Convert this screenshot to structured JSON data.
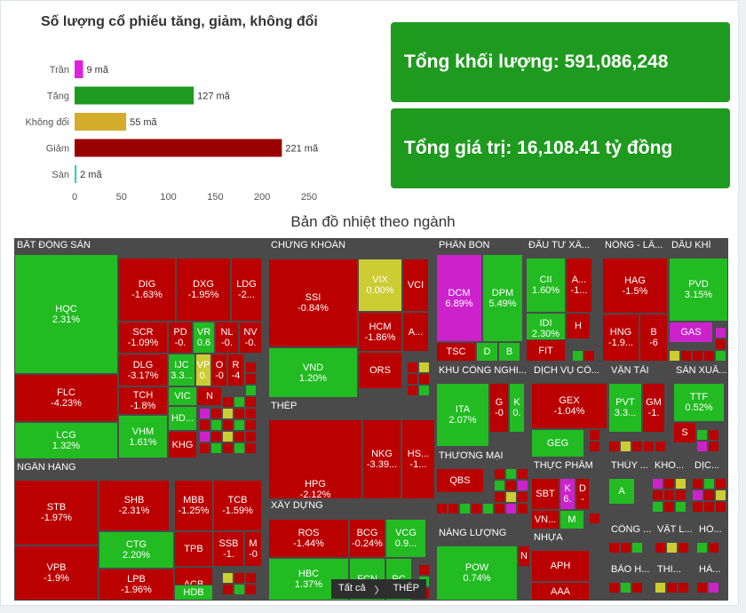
{
  "bar_panel": {
    "title": "Số lượng cổ phiếu tăng, giảm, không đổi"
  },
  "stats": {
    "volume": "Tổng khối lượng: 591,086,248",
    "value": "Tổng giá trị: 16,108.41 tỷ đồng"
  },
  "heatmap_title": "Bản đồ nhiệt theo ngành",
  "breadcrumb": {
    "root": "Tất cả",
    "sep": "〉",
    "current": "THÉP"
  },
  "colors": {
    "up": "#22bb22",
    "down": "#bb0000",
    "ref": "#cccc33",
    "ceil": "#cc22cc",
    "floor": "#33cccc",
    "panel": "#1e9a1e"
  },
  "chart_data": {
    "type": "bar",
    "orientation": "horizontal",
    "title": "Số lượng cổ phiếu tăng, giảm, không đổi",
    "categories": [
      "Trần",
      "Tăng",
      "Không đổi",
      "Giảm",
      "Sàn"
    ],
    "values": [
      9,
      127,
      55,
      221,
      2
    ],
    "value_labels": [
      "9 mã",
      "127 mã",
      "55 mã",
      "221 mã",
      "2 mã"
    ],
    "colors": [
      "#e020e0",
      "#1e9a1e",
      "#d4ac2b",
      "#990000",
      "#33cccc"
    ],
    "xlim": [
      0,
      250
    ],
    "xticks": [
      0,
      50,
      100,
      150,
      200,
      250
    ]
  },
  "heatmap": {
    "sectors": [
      {
        "name": "BẤT ĐỘNG SẢN",
        "cells": [
          {
            "t": "HQC",
            "v": "2.31%",
            "c": "up"
          },
          {
            "t": "FLC",
            "v": "-4.23%",
            "c": "down"
          },
          {
            "t": "LCG",
            "v": "1.32%",
            "c": "up"
          },
          {
            "t": "DIG",
            "v": "-1.63%",
            "c": "down"
          },
          {
            "t": "DXG",
            "v": "-1.95%",
            "c": "down"
          },
          {
            "t": "LDG",
            "v": "-2...",
            "c": "down"
          },
          {
            "t": "SCR",
            "v": "-1.09%",
            "c": "down"
          },
          {
            "t": "PD",
            "v": "-0.",
            "c": "down"
          },
          {
            "t": "VR",
            "v": "0.6",
            "c": "up"
          },
          {
            "t": "NL",
            "v": "-0.",
            "c": "down"
          },
          {
            "t": "NV",
            "v": "-0.",
            "c": "down"
          },
          {
            "t": "DLG",
            "v": "-3.17%",
            "c": "down"
          },
          {
            "t": "IJC",
            "v": "3.3...",
            "c": "up"
          },
          {
            "t": "VP",
            "v": "0.",
            "c": "ref"
          },
          {
            "t": "O",
            "v": "-0",
            "c": "down"
          },
          {
            "t": "R",
            "v": "-4",
            "c": "down"
          },
          {
            "t": "TCH",
            "v": "-1.8%",
            "c": "down"
          },
          {
            "t": "VIC",
            "v": "",
            "c": "up"
          },
          {
            "t": "N",
            "v": "",
            "c": "down"
          },
          {
            "t": "VHM",
            "v": "1.61%",
            "c": "up"
          },
          {
            "t": "HD...",
            "v": "",
            "c": "up"
          },
          {
            "t": "KHG",
            "v": "",
            "c": "down"
          }
        ]
      },
      {
        "name": "CHỨNG KHOÁN",
        "cells": [
          {
            "t": "SSI",
            "v": "-0.84%",
            "c": "down"
          },
          {
            "t": "VIX",
            "v": "0.00%",
            "c": "ref"
          },
          {
            "t": "VCI",
            "v": "",
            "c": "down"
          },
          {
            "t": "HCM",
            "v": "-1.86%",
            "c": "down"
          },
          {
            "t": "A...",
            "v": "",
            "c": "down"
          },
          {
            "t": "ORS",
            "v": "",
            "c": "down"
          },
          {
            "t": "VND",
            "v": "1.20%",
            "c": "up"
          }
        ]
      },
      {
        "name": "THÉP",
        "cells": [
          {
            "t": "HPG",
            "v": "-2.12%",
            "c": "down"
          },
          {
            "t": "NKG",
            "v": "-3.39...",
            "c": "down"
          },
          {
            "t": "HS...",
            "v": "-1...",
            "c": "down"
          }
        ]
      },
      {
        "name": "XÂY DỰNG",
        "cells": [
          {
            "t": "ROS",
            "v": "-1.44%",
            "c": "down"
          },
          {
            "t": "BCG",
            "v": "-0.24%",
            "c": "down"
          },
          {
            "t": "VCG",
            "v": "0.9...",
            "c": "up"
          },
          {
            "t": "HBC",
            "v": "1.37%",
            "c": "up"
          },
          {
            "t": "FCN",
            "v": "",
            "c": "up"
          },
          {
            "t": "PC",
            "v": "",
            "c": "up"
          }
        ]
      },
      {
        "name": "NGÂN HÀNG",
        "cells": [
          {
            "t": "STB",
            "v": "-1.97%",
            "c": "down"
          },
          {
            "t": "VPB",
            "v": "-1.9%",
            "c": "down"
          },
          {
            "t": "SHB",
            "v": "-2.31%",
            "c": "down"
          },
          {
            "t": "MBB",
            "v": "-1.25%",
            "c": "down"
          },
          {
            "t": "TCB",
            "v": "-1.59%",
            "c": "down"
          },
          {
            "t": "CTG",
            "v": "2.20%",
            "c": "up"
          },
          {
            "t": "TPB",
            "v": "",
            "c": "down"
          },
          {
            "t": "SSB",
            "v": "-1.",
            "c": "down"
          },
          {
            "t": "M",
            "v": "-0",
            "c": "down"
          },
          {
            "t": "ACB",
            "v": "",
            "c": "down"
          },
          {
            "t": "LPB",
            "v": "-1.96%",
            "c": "down"
          },
          {
            "t": "HDB",
            "v": "",
            "c": "up"
          }
        ]
      },
      {
        "name": "PHÂN BÓN",
        "cells": [
          {
            "t": "DCM",
            "v": "6.89%",
            "c": "ceil"
          },
          {
            "t": "DPM",
            "v": "5.49%",
            "c": "up"
          },
          {
            "t": "TSC",
            "v": "",
            "c": "down"
          },
          {
            "t": "D",
            "v": "",
            "c": "up"
          },
          {
            "t": "B",
            "v": "",
            "c": "up"
          }
        ]
      },
      {
        "name": "ĐẦU TƯ XÂ...",
        "cells": [
          {
            "t": "CII",
            "v": "1.60%",
            "c": "up"
          },
          {
            "t": "A...",
            "v": "-1...",
            "c": "down"
          },
          {
            "t": "IDI",
            "v": "2.30%",
            "c": "up"
          },
          {
            "t": "H",
            "v": "",
            "c": "down"
          },
          {
            "t": "FIT",
            "v": "",
            "c": "down"
          }
        ]
      },
      {
        "name": "NÔNG - LÂ...",
        "cells": [
          {
            "t": "HAG",
            "v": "-1.5%",
            "c": "down"
          },
          {
            "t": "HNG",
            "v": "-1.9...",
            "c": "down"
          },
          {
            "t": "B",
            "v": "-6",
            "c": "down"
          }
        ]
      },
      {
        "name": "DẦU KHÍ",
        "cells": [
          {
            "t": "PVD",
            "v": "3.15%",
            "c": "up"
          },
          {
            "t": "GAS",
            "v": "",
            "c": "ceil"
          }
        ]
      },
      {
        "name": "KHU CÔNG NGHI...",
        "cells": [
          {
            "t": "ITA",
            "v": "2.07%",
            "c": "up"
          },
          {
            "t": "G",
            "v": "-0",
            "c": "down"
          },
          {
            "t": "K",
            "v": "0.",
            "c": "up"
          }
        ]
      },
      {
        "name": "DỊCH VỤ CÔ...",
        "cells": [
          {
            "t": "GEX",
            "v": "-1.04%",
            "c": "down"
          },
          {
            "t": "GEG",
            "v": "",
            "c": "up"
          }
        ]
      },
      {
        "name": "VẬN TẢI",
        "cells": [
          {
            "t": "PVT",
            "v": "3.3...",
            "c": "up"
          },
          {
            "t": "GM",
            "v": "-1.",
            "c": "down"
          }
        ]
      },
      {
        "name": "SẢN XUẤ...",
        "cells": [
          {
            "t": "TTF",
            "v": "0.52%",
            "c": "up"
          },
          {
            "t": "S",
            "v": "",
            "c": "down"
          }
        ]
      },
      {
        "name": "THƯƠNG MẠI",
        "cells": [
          {
            "t": "QBS",
            "v": "",
            "c": "down"
          }
        ]
      },
      {
        "name": "NĂNG LƯỢNG",
        "cells": [
          {
            "t": "POW",
            "v": "0.74%",
            "c": "up"
          },
          {
            "t": "N",
            "v": "",
            "c": "down"
          }
        ]
      },
      {
        "name": "THỰC PHẨM",
        "cells": [
          {
            "t": "SBT",
            "v": "",
            "c": "down"
          },
          {
            "t": "K",
            "v": "6.",
            "c": "ceil"
          },
          {
            "t": "D",
            "v": "-",
            "c": "down"
          },
          {
            "t": "VN...",
            "v": "",
            "c": "down"
          },
          {
            "t": "M",
            "v": "",
            "c": "up"
          }
        ]
      },
      {
        "name": "NHỰA",
        "cells": [
          {
            "t": "APH",
            "v": "",
            "c": "down"
          },
          {
            "t": "AAA",
            "v": "",
            "c": "down"
          }
        ]
      },
      {
        "name": "THỦY ...",
        "cells": [
          {
            "t": "A",
            "v": "",
            "c": "up"
          }
        ]
      },
      {
        "name": "KHO...",
        "cells": []
      },
      {
        "name": "DỊC...",
        "cells": []
      },
      {
        "name": "CÔNG ...",
        "cells": []
      },
      {
        "name": "VẬT L...",
        "cells": []
      },
      {
        "name": "HÓ...",
        "cells": []
      },
      {
        "name": "BẢO H...",
        "cells": []
      },
      {
        "name": "THI...",
        "cells": []
      },
      {
        "name": "HÀ...",
        "cells": []
      }
    ]
  }
}
